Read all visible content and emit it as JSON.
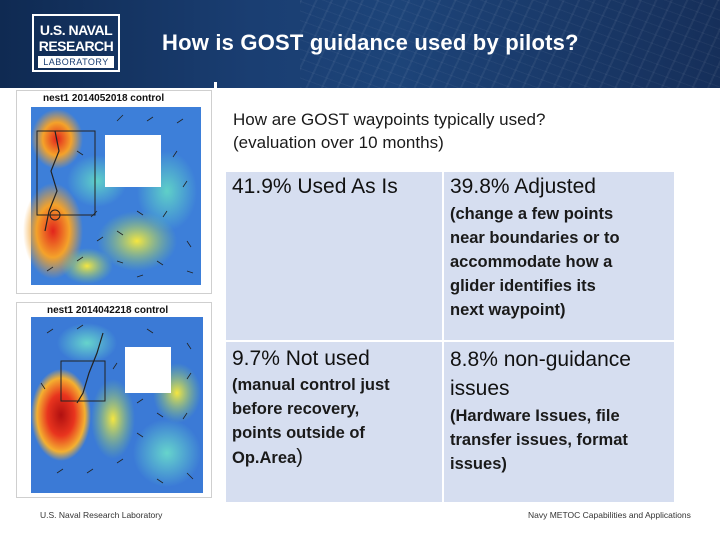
{
  "header": {
    "logo": {
      "line1": "U.S. NAVAL",
      "line2": "RESEARCH",
      "line3": "LABORATORY"
    },
    "title": "How is GOST guidance used by pilots?"
  },
  "maps": [
    {
      "caption": "nest1 2014052018 control"
    },
    {
      "caption": "nest1 2014042218 control"
    }
  ],
  "question": {
    "line1": "How are GOST waypoints typically used?",
    "line2": "(evaluation over 10 months)"
  },
  "results": {
    "used_as_is": {
      "head": "41.9% Used As Is"
    },
    "adjusted": {
      "head": "39.8%  Adjusted",
      "lines": [
        "(change a few points",
        "near boundaries or to",
        "accommodate how a",
        "glider identifies its",
        "next waypoint)"
      ]
    },
    "not_used": {
      "head": "9.7% Not used",
      "lines": [
        "(manual control just",
        "before recovery,",
        "points outside of"
      ],
      "last_line": "Op.Area",
      "last_paren": ")"
    },
    "non_guidance": {
      "head_line1": "8.8% non-guidance",
      "head_line2": "issues",
      "lines": [
        "(Hardware Issues, file",
        "transfer issues, format",
        "issues)"
      ]
    }
  },
  "footer": {
    "left": "U.S. Naval Research Laboratory",
    "right": "Navy METOC Capabilities and Applications"
  }
}
